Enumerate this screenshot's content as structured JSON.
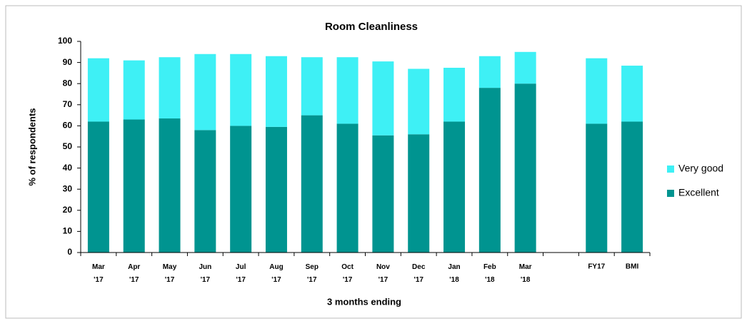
{
  "chart_data": {
    "type": "stacked_bar",
    "title": "Room Cleanliness",
    "x_label": "3 months ending",
    "y_label": "% of respondents",
    "categories": [
      "Mar '17",
      "Apr '17",
      "May '17",
      "Jun '17",
      "Jul '17",
      "Aug '17",
      "Sep '17",
      "Oct '17",
      "Nov '17",
      "Dec '17",
      "Jan '18",
      "Feb '18",
      "Mar '18",
      null,
      "FY17",
      "BMI"
    ],
    "series": [
      {
        "name": "Excellent",
        "color": "#009490",
        "values": [
          62,
          63,
          63.5,
          58,
          60,
          59.5,
          65,
          61,
          55.5,
          56,
          62,
          78,
          80,
          null,
          61,
          62
        ]
      },
      {
        "name": "Very good",
        "color": "#3ef0f5",
        "values": [
          30,
          28,
          29,
          36,
          34,
          33.5,
          27.5,
          31.5,
          35,
          31,
          25.5,
          15,
          15,
          null,
          31,
          26.5
        ]
      }
    ],
    "ylim": [
      0,
      100
    ],
    "yticks": [
      0,
      10,
      20,
      30,
      40,
      50,
      60,
      70,
      80,
      90,
      100
    ],
    "grid": false,
    "legend": "right"
  }
}
